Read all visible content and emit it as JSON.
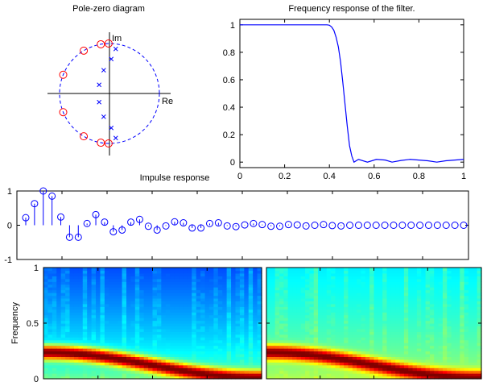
{
  "chart_data": [
    {
      "type": "scatter",
      "title": "Pole-zero diagram",
      "xlabel": "Re",
      "ylabel": "Im",
      "unit_circle": true,
      "zeros": [
        {
          "r": 1.0,
          "angle_deg": 91
        },
        {
          "r": 1.0,
          "angle_deg": 100
        },
        {
          "r": 1.0,
          "angle_deg": 121
        },
        {
          "r": 1.0,
          "angle_deg": 158
        },
        {
          "r": 1.0,
          "angle_deg": -91
        },
        {
          "r": 1.0,
          "angle_deg": -100
        },
        {
          "r": 1.0,
          "angle_deg": -121
        },
        {
          "r": 1.0,
          "angle_deg": -158
        }
      ],
      "poles": [
        {
          "r": 0.9,
          "angle_deg": 82
        },
        {
          "r": 0.69,
          "angle_deg": 87
        },
        {
          "r": 0.48,
          "angle_deg": 104
        },
        {
          "r": 0.27,
          "angle_deg": 140
        },
        {
          "r": 0.9,
          "angle_deg": -82
        },
        {
          "r": 0.69,
          "angle_deg": -87
        },
        {
          "r": 0.48,
          "angle_deg": -104
        },
        {
          "r": 0.27,
          "angle_deg": -140
        }
      ],
      "colors": {
        "zeros": "#ff0000",
        "poles": "#0000ff",
        "circle": "#0000ff"
      }
    },
    {
      "type": "line",
      "title": "Frequency response of the filter.",
      "xlim": [
        0,
        1
      ],
      "ylim": [
        -0.04,
        1.04
      ],
      "xticks": [
        "0",
        "0.2",
        "0.4",
        "0.6",
        "0.8",
        "1"
      ],
      "yticks": [
        "0",
        "0.2",
        "0.4",
        "0.6",
        "0.8",
        "1"
      ],
      "x": [
        0,
        0.39,
        0.4,
        0.41,
        0.42,
        0.43,
        0.44,
        0.45,
        0.46,
        0.47,
        0.48,
        0.49,
        0.5,
        0.51,
        0.53,
        0.57,
        0.61,
        0.65,
        0.68,
        0.72,
        0.76,
        0.8,
        0.84,
        0.88,
        0.92,
        0.96,
        1.0
      ],
      "y": [
        1,
        1,
        0.997,
        0.985,
        0.96,
        0.91,
        0.84,
        0.73,
        0.58,
        0.42,
        0.26,
        0.12,
        0.045,
        0.0,
        0.02,
        0.0,
        0.02,
        0.015,
        0.0,
        0.012,
        0.02,
        0.015,
        0.01,
        0.0,
        0.01,
        0.015,
        0.02
      ],
      "color": "#0000ff"
    },
    {
      "type": "stem",
      "title": "Impulse response",
      "ylim": [
        -1,
        1
      ],
      "yticks": [
        "-1",
        "0",
        "1"
      ],
      "values": [
        0.22,
        0.63,
        1.0,
        0.85,
        0.24,
        -0.35,
        -0.35,
        0.05,
        0.31,
        0.09,
        -0.19,
        -0.14,
        0.09,
        0.17,
        -0.03,
        -0.14,
        -0.02,
        0.1,
        0.07,
        -0.08,
        -0.08,
        0.05,
        0.07,
        -0.02,
        -0.04,
        0.01,
        0.05,
        0.02,
        -0.03,
        -0.03,
        0.02,
        0.01,
        -0.02,
        0.0,
        0.02,
        -0.01,
        -0.02,
        0,
        0,
        0,
        0,
        0,
        0,
        0,
        0,
        0,
        0,
        0,
        0,
        0,
        0
      ],
      "color": "#0000ff"
    },
    {
      "type": "heatmap",
      "title": "",
      "ylabel": "Frequency",
      "ylim": [
        0,
        1
      ],
      "yticks": [
        "0",
        "0.5",
        "1"
      ],
      "colormap": "jet",
      "panels": [
        {
          "name": "original",
          "ridge_start_freq": 0.24,
          "ridge_end_freq": 0.01,
          "background_top": 0.2,
          "background_bottom": 0.5
        },
        {
          "name": "filtered",
          "ridge_start_freq": 0.24,
          "ridge_end_freq": 0.01,
          "background_top": 0.36,
          "background_bottom": 0.56
        }
      ]
    }
  ]
}
